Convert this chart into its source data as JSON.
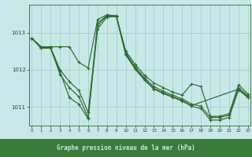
{
  "xlabel": "Graphe pression niveau de la mer (hPa)",
  "bg_color": "#c8e8e8",
  "line_color": "#2d6a2d",
  "grid_color": "#a0c8c8",
  "text_color": "#1a4a1a",
  "label_bg": "#3a7a3a",
  "label_fg": "#c8e8e8",
  "xlim": [
    -0.3,
    23.3
  ],
  "ylim": [
    1010.5,
    1013.75
  ],
  "yticks": [
    1011,
    1012,
    1013
  ],
  "xticks": [
    0,
    1,
    2,
    3,
    4,
    5,
    6,
    7,
    8,
    9,
    10,
    11,
    12,
    13,
    14,
    15,
    16,
    17,
    18,
    19,
    20,
    21,
    22,
    23
  ],
  "series": [
    {
      "x": [
        0,
        1,
        2,
        3,
        4,
        5,
        6,
        7,
        8,
        9,
        10,
        11,
        12,
        13,
        14,
        15,
        16,
        17,
        18,
        19,
        20,
        21,
        22,
        23
      ],
      "y": [
        1012.85,
        1012.62,
        1012.62,
        1012.62,
        1012.62,
        1012.2,
        1012.05,
        1013.35,
        1013.48,
        1013.45,
        1012.5,
        1012.15,
        1011.85,
        1011.65,
        1011.52,
        1011.4,
        1011.32,
        1011.62,
        1011.55,
        1010.75,
        1010.75,
        1010.82,
        1011.6,
        1011.35
      ]
    },
    {
      "x": [
        0,
        1,
        2,
        3,
        4,
        5,
        6,
        7,
        8,
        9,
        10,
        11,
        12,
        13,
        14,
        15,
        16,
        17,
        18,
        19,
        20,
        21,
        22,
        23
      ],
      "y": [
        1012.85,
        1012.6,
        1012.6,
        1012.0,
        1011.68,
        1011.45,
        1010.85,
        1013.2,
        1013.45,
        1013.45,
        1012.45,
        1012.08,
        1011.78,
        1011.55,
        1011.42,
        1011.32,
        1011.22,
        1011.08,
        1011.02,
        1010.72,
        1010.72,
        1010.78,
        1011.52,
        1011.3
      ]
    },
    {
      "x": [
        0,
        1,
        2,
        3,
        4,
        5,
        6,
        7,
        8,
        9,
        10,
        11,
        12,
        13,
        14,
        15,
        16,
        17,
        18,
        19,
        20,
        21,
        22,
        23
      ],
      "y": [
        1012.85,
        1012.58,
        1012.58,
        1011.88,
        1011.52,
        1011.28,
        1010.72,
        1013.1,
        1013.42,
        1013.43,
        1012.4,
        1012.02,
        1011.72,
        1011.48,
        1011.36,
        1011.26,
        1011.16,
        1011.02,
        1010.96,
        1010.65,
        1010.65,
        1010.72,
        1011.46,
        1011.25
      ]
    },
    {
      "x": [
        0,
        1,
        2,
        3,
        4,
        5,
        6,
        7,
        8,
        9,
        10,
        11,
        12,
        13,
        14,
        15,
        16,
        17,
        22,
        23
      ],
      "y": [
        1012.85,
        1012.58,
        1012.58,
        1011.95,
        1011.25,
        1011.08,
        1010.68,
        1013.25,
        1013.46,
        1013.44,
        1012.42,
        1012.04,
        1011.74,
        1011.5,
        1011.38,
        1011.28,
        1011.18,
        1011.04,
        1011.48,
        1011.27
      ]
    }
  ],
  "marker": "+",
  "marker_size": 3.5,
  "linewidth": 0.85
}
